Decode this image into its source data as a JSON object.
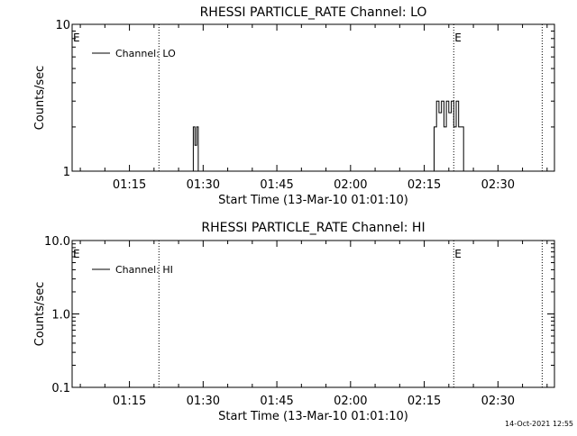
{
  "footer": {
    "timestamp": "14-Oct-2021 12:55"
  },
  "chart_data": [
    {
      "type": "line",
      "title": "RHESSI PARTICLE_RATE Channel: LO",
      "xlabel": "Start Time (13-Mar-10 01:01:10)",
      "ylabel": "Counts/sec",
      "y_scale": "log",
      "xlim": [
        "01:03:20",
        "02:41:30"
      ],
      "ylim": [
        1,
        10
      ],
      "x_ticks": [
        "01:15",
        "01:30",
        "01:45",
        "02:00",
        "02:15",
        "02:30"
      ],
      "y_ticks": [
        "1",
        "10"
      ],
      "legend": {
        "placement": "top-left",
        "entries": [
          "Channel: LO"
        ]
      },
      "event_markers": [
        {
          "time": "01:03:20",
          "label": "E"
        },
        {
          "time": "01:21:00",
          "label": ""
        },
        {
          "time": "02:21:00",
          "label": "E"
        },
        {
          "time": "02:39:00",
          "label": ""
        }
      ],
      "series": [
        {
          "name": "Channel: LO",
          "color": "#000000",
          "points": [
            [
              "01:03:20",
              1
            ],
            [
              "01:28:00",
              1
            ],
            [
              "01:28:00",
              2
            ],
            [
              "01:28:20",
              2
            ],
            [
              "01:28:20",
              1.5
            ],
            [
              "01:28:40",
              1.5
            ],
            [
              "01:28:40",
              2
            ],
            [
              "01:29:00",
              2
            ],
            [
              "01:29:00",
              1
            ],
            [
              "02:17:00",
              1
            ],
            [
              "02:17:00",
              2
            ],
            [
              "02:17:30",
              2
            ],
            [
              "02:17:30",
              3
            ],
            [
              "02:18:00",
              3
            ],
            [
              "02:18:00",
              2.5
            ],
            [
              "02:18:30",
              2.5
            ],
            [
              "02:18:30",
              3
            ],
            [
              "02:19:00",
              3
            ],
            [
              "02:19:00",
              2
            ],
            [
              "02:19:30",
              2
            ],
            [
              "02:19:30",
              3
            ],
            [
              "02:20:00",
              3
            ],
            [
              "02:20:00",
              2.5
            ],
            [
              "02:20:30",
              2.5
            ],
            [
              "02:20:30",
              3
            ],
            [
              "02:21:00",
              3
            ],
            [
              "02:21:00",
              2
            ],
            [
              "02:21:30",
              2
            ],
            [
              "02:21:30",
              3
            ],
            [
              "02:22:00",
              3
            ],
            [
              "02:22:00",
              2
            ],
            [
              "02:23:00",
              2
            ],
            [
              "02:23:00",
              1
            ],
            [
              "02:41:30",
              1
            ]
          ]
        }
      ]
    },
    {
      "type": "line",
      "title": "RHESSI PARTICLE_RATE Channel: HI",
      "xlabel": "Start Time (13-Mar-10 01:01:10)",
      "ylabel": "Counts/sec",
      "y_scale": "log",
      "xlim": [
        "01:03:20",
        "02:41:30"
      ],
      "ylim": [
        0.1,
        10
      ],
      "x_ticks": [
        "01:15",
        "01:30",
        "01:45",
        "02:00",
        "02:15",
        "02:30"
      ],
      "y_ticks": [
        "0.1",
        "1.0",
        "10.0"
      ],
      "legend": {
        "placement": "top-left",
        "entries": [
          "Channel: HI"
        ]
      },
      "event_markers": [
        {
          "time": "01:03:20",
          "label": "E"
        },
        {
          "time": "01:21:00",
          "label": ""
        },
        {
          "time": "02:21:00",
          "label": "E"
        },
        {
          "time": "02:39:00",
          "label": ""
        }
      ],
      "series": [
        {
          "name": "Channel: HI",
          "color": "#000000",
          "points": []
        }
      ]
    }
  ]
}
